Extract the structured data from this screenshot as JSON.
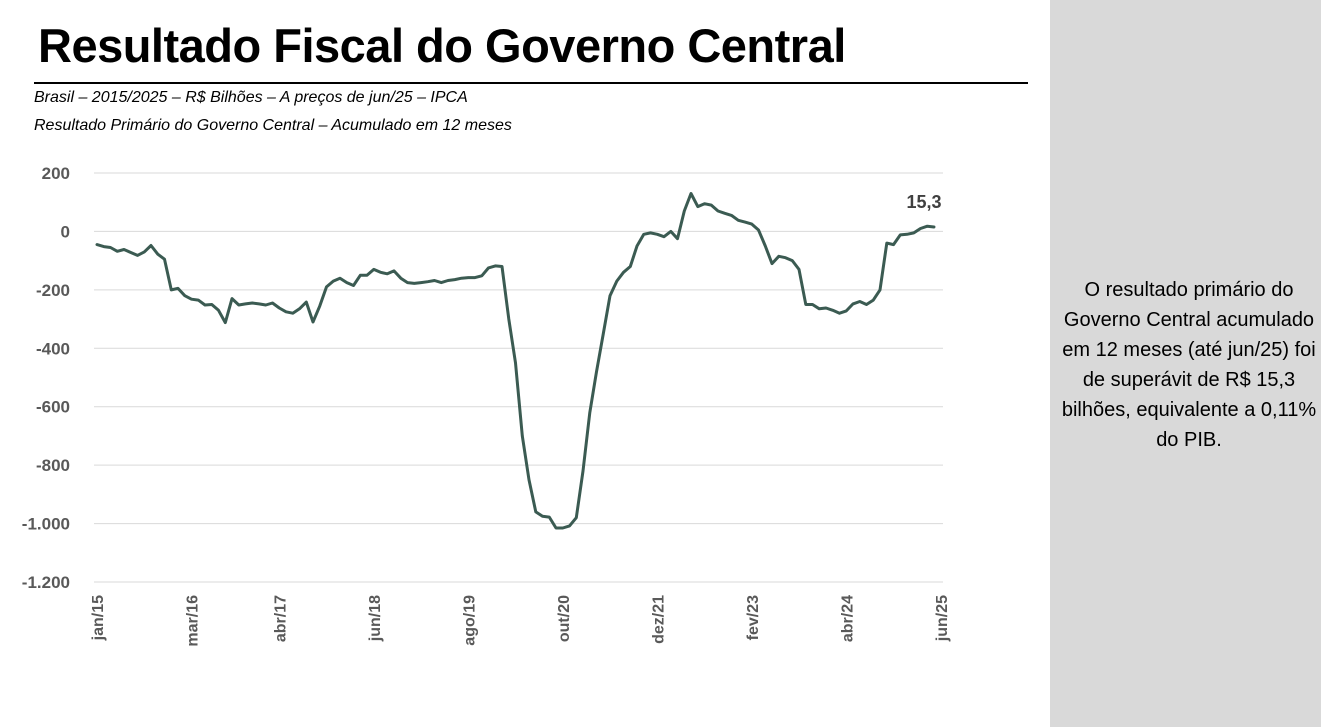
{
  "page": {
    "title": "Resultado Fiscal do Governo Central",
    "subtitle_1": "Brasil – 2015/2025 – R$ Bilhões – A preços de jun/25 – IPCA",
    "subtitle_2": "Resultado Primário do Governo Central – Acumulado em 12 meses",
    "side_note": "O resultado primário do Governo Central acumulado em 12 meses (até jun/25) foi de superávit de R$ 15,3 bilhões, equivalente a 0,11% do PIB."
  },
  "colors": {
    "line": "#3b5b52",
    "grid": "#d9d9d9",
    "panel": "#d9d9d9"
  },
  "chart_data": {
    "type": "line",
    "title": "Resultado Primário do Governo Central – Acumulado em 12 meses",
    "xlabel": "",
    "ylabel": "",
    "unit": "R$ Bilhões",
    "ylim": [
      -1200,
      200
    ],
    "yticks": [
      200,
      0,
      -200,
      -400,
      -600,
      -800,
      -1000,
      -1200
    ],
    "ytick_labels": [
      "200",
      "0",
      "-200",
      "-400",
      "-600",
      "-800",
      "-1.000",
      "-1.200"
    ],
    "grid": true,
    "x_start": "jan/15",
    "x_end": "jun/25",
    "xtick_labels": [
      {
        "label": "jan/15",
        "index": 0
      },
      {
        "label": "mar/16",
        "index": 14
      },
      {
        "label": "abr/17",
        "index": 27
      },
      {
        "label": "jun/18",
        "index": 41
      },
      {
        "label": "ago/19",
        "index": 55
      },
      {
        "label": "out/20",
        "index": 69
      },
      {
        "label": "dez/21",
        "index": 83
      },
      {
        "label": "fev/23",
        "index": 97
      },
      {
        "label": "abr/24",
        "index": 111
      },
      {
        "label": "jun/25",
        "index": 125
      }
    ],
    "series": [
      {
        "name": "Resultado Primário do Governo Central – Acumulado em 12 meses",
        "values": [
          -45,
          -52,
          -55,
          -68,
          -62,
          -72,
          -82,
          -70,
          -48,
          -78,
          -95,
          -200,
          -195,
          -220,
          -232,
          -235,
          -252,
          -250,
          -270,
          -312,
          -230,
          -252,
          -248,
          -245,
          -248,
          -252,
          -245,
          -262,
          -275,
          -280,
          -265,
          -242,
          -310,
          -255,
          -190,
          -170,
          -160,
          -175,
          -185,
          -150,
          -150,
          -130,
          -140,
          -145,
          -135,
          -160,
          -175,
          -178,
          -175,
          -172,
          -168,
          -175,
          -168,
          -165,
          -160,
          -158,
          -158,
          -152,
          -125,
          -118,
          -120,
          -300,
          -450,
          -700,
          -850,
          -960,
          -975,
          -978,
          -1015,
          -1015,
          -1008,
          -980,
          -820,
          -620,
          -480,
          -350,
          -220,
          -170,
          -140,
          -120,
          -50,
          -10,
          -5,
          -10,
          -18,
          0,
          -25,
          70,
          130,
          85,
          95,
          90,
          70,
          62,
          55,
          38,
          32,
          25,
          5,
          -50,
          -110,
          -85,
          -90,
          -100,
          -130,
          -250,
          -250,
          -265,
          -262,
          -270,
          -280,
          -272,
          -248,
          -240,
          -250,
          -235,
          -200,
          -40,
          -45,
          -12,
          -10,
          -5,
          10,
          18,
          15.3
        ],
        "last_label": "15,3"
      }
    ]
  }
}
